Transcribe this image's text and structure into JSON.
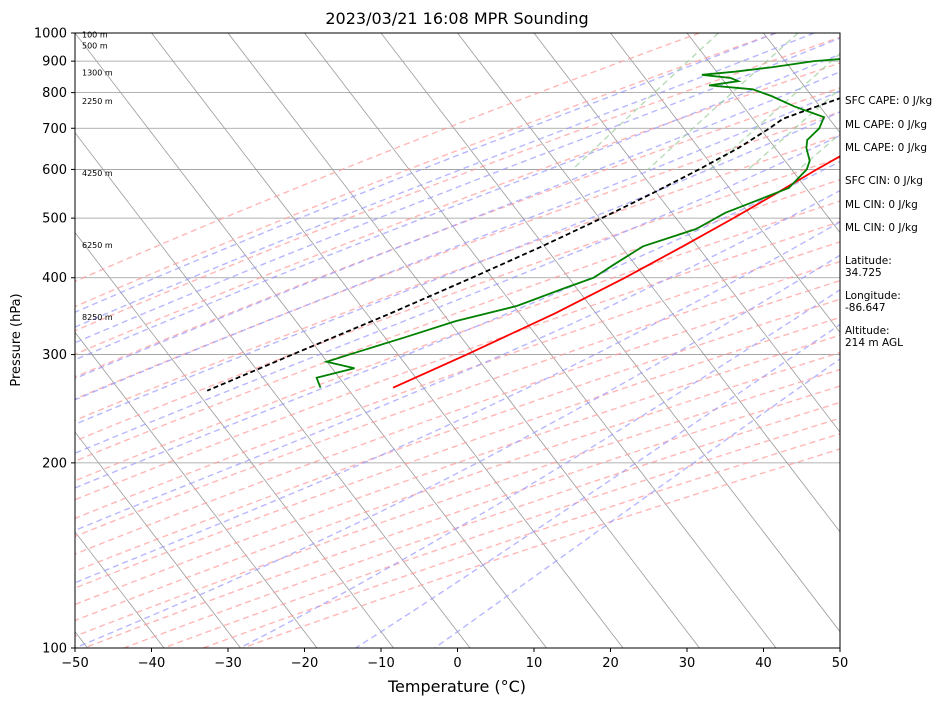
{
  "chart_data": {
    "type": "line",
    "title": "2023/03/21 16:08 MPR Sounding",
    "xlabel": "Temperature (°C)",
    "ylabel": "Pressure (hPa)",
    "xlim": [
      -50,
      50
    ],
    "ylim": [
      1000,
      100
    ],
    "y_scale": "log",
    "skew": true,
    "grid": true,
    "x_ticks": [
      -50,
      -40,
      -30,
      -20,
      -10,
      0,
      10,
      20,
      30,
      40,
      50
    ],
    "y_ticks": [
      1000,
      900,
      800,
      700,
      600,
      500,
      400,
      300,
      200,
      100
    ],
    "series": [
      {
        "key": "temperature",
        "color": "#ff0000",
        "points": [
          [
            1000,
            13.3
          ],
          [
            970,
            8.3
          ],
          [
            950,
            5.6
          ],
          [
            930,
            4.2
          ],
          [
            900,
            3.6
          ],
          [
            870,
            3.4
          ],
          [
            850,
            3.5
          ],
          [
            800,
            3.8
          ],
          [
            750,
            3.9
          ],
          [
            700,
            3.6
          ],
          [
            650,
            1.8
          ],
          [
            600,
            -1.0
          ],
          [
            550,
            -3.8
          ],
          [
            500,
            -7.0
          ],
          [
            450,
            -10.8
          ],
          [
            400,
            -15.2
          ],
          [
            350,
            -20.8
          ],
          [
            300,
            -28.2
          ],
          [
            265,
            -34.5
          ]
        ]
      },
      {
        "key": "dewpoint",
        "color": "#008000",
        "points": [
          [
            1000,
            5.0
          ],
          [
            990,
            3.0
          ],
          [
            980,
            1.0
          ],
          [
            970,
            -0.5
          ],
          [
            960,
            0.0
          ],
          [
            950,
            -0.6
          ],
          [
            940,
            -0.4
          ],
          [
            930,
            -1.2
          ],
          [
            920,
            -3.8
          ],
          [
            910,
            -7.7
          ],
          [
            900,
            -12.2
          ],
          [
            880,
            -17.0
          ],
          [
            865,
            -21.5
          ],
          [
            855,
            -25.5
          ],
          [
            845,
            -21.4
          ],
          [
            835,
            -20.1
          ],
          [
            822,
            -23.5
          ],
          [
            810,
            -17.4
          ],
          [
            790,
            -14.3
          ],
          [
            760,
            -10.3
          ],
          [
            730,
            -5.3
          ],
          [
            700,
            -4.8
          ],
          [
            670,
            -5.2
          ],
          [
            650,
            -4.5
          ],
          [
            620,
            -2.8
          ],
          [
            600,
            -2.3
          ],
          [
            560,
            -2.8
          ],
          [
            530,
            -6.2
          ],
          [
            510,
            -8.6
          ],
          [
            480,
            -10.8
          ],
          [
            450,
            -16.0
          ],
          [
            420,
            -18.0
          ],
          [
            400,
            -19.3
          ],
          [
            385,
            -22.0
          ],
          [
            360,
            -26.5
          ],
          [
            340,
            -33.0
          ],
          [
            320,
            -38.0
          ],
          [
            302,
            -43.0
          ],
          [
            292,
            -45.8
          ],
          [
            285,
            -41.5
          ],
          [
            275,
            -45.5
          ],
          [
            265,
            -44.0
          ]
        ]
      },
      {
        "key": "parcel",
        "color": "#000000",
        "points": [
          [
            1000,
            13.3
          ],
          [
            950,
            9.5
          ],
          [
            900,
            5.5
          ],
          [
            850,
            1.0
          ],
          [
            800,
            -3.6
          ],
          [
            750,
            -8.2
          ],
          [
            725,
            -10.5
          ],
          [
            700,
            -11.3
          ],
          [
            650,
            -13.4
          ],
          [
            600,
            -16.4
          ],
          [
            550,
            -20.0
          ],
          [
            500,
            -24.2
          ],
          [
            450,
            -29.2
          ],
          [
            400,
            -35.2
          ],
          [
            350,
            -42.3
          ],
          [
            300,
            -51.0
          ],
          [
            262,
            -58.5
          ]
        ]
      }
    ],
    "height_labels": [
      {
        "p": 995,
        "text": "100 m"
      },
      {
        "p": 955,
        "text": "500 m"
      },
      {
        "p": 862,
        "text": "1300 m"
      },
      {
        "p": 775,
        "text": "2250 m"
      },
      {
        "p": 592,
        "text": "4250 m"
      },
      {
        "p": 452,
        "text": "6250 m"
      },
      {
        "p": 345,
        "text": "8250 m"
      }
    ],
    "annotations": {
      "sfc_cape": "SFC CAPE: 0 J/kg",
      "ml_cape_1": "ML CAPE: 0 J/kg",
      "ml_cape_2": "ML CAPE: 0 J/kg",
      "sfc_cin": "SFC CIN: 0 J/kg",
      "ml_cin_1": "ML CIN: 0 J/kg",
      "ml_cin_2": "ML CIN: 0 J/kg",
      "latitude_label": "Latitude:",
      "latitude_value": "34.725",
      "longitude_label": "Longitude:",
      "longitude_value": "-86.647",
      "altitude_label": "Altitude:",
      "altitude_value": "214 m AGL"
    },
    "background_lines": {
      "isotherm_color": "#9a9a9a",
      "dry_adiabat_color": "#ff9999",
      "moist_adiabat_color": "#9999ff",
      "mixing_ratio_color": "#99cc99"
    }
  }
}
